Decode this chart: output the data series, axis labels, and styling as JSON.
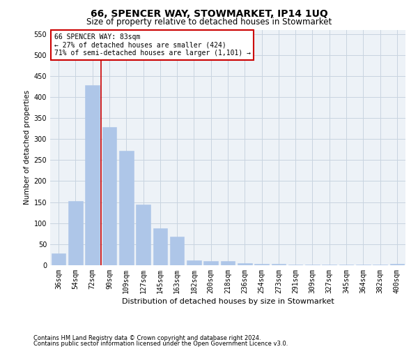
{
  "title1": "66, SPENCER WAY, STOWMARKET, IP14 1UQ",
  "title2": "Size of property relative to detached houses in Stowmarket",
  "xlabel": "Distribution of detached houses by size in Stowmarket",
  "ylabel": "Number of detached properties",
  "categories": [
    "36sqm",
    "54sqm",
    "72sqm",
    "90sqm",
    "109sqm",
    "127sqm",
    "145sqm",
    "163sqm",
    "182sqm",
    "200sqm",
    "218sqm",
    "236sqm",
    "254sqm",
    "273sqm",
    "291sqm",
    "309sqm",
    "327sqm",
    "345sqm",
    "364sqm",
    "382sqm",
    "400sqm"
  ],
  "values": [
    28,
    153,
    428,
    328,
    272,
    145,
    88,
    68,
    12,
    10,
    10,
    5,
    3,
    3,
    1,
    1,
    1,
    1,
    1,
    1,
    3
  ],
  "bar_color": "#aec6e8",
  "bar_edgecolor": "#aec6e8",
  "grid_color": "#c8d4e0",
  "vline_x": 2.5,
  "vline_color": "#cc0000",
  "annotation_text": "66 SPENCER WAY: 83sqm\n← 27% of detached houses are smaller (424)\n71% of semi-detached houses are larger (1,101) →",
  "annotation_box_facecolor": "#ffffff",
  "annotation_box_edgecolor": "#cc0000",
  "footnote1": "Contains HM Land Registry data © Crown copyright and database right 2024.",
  "footnote2": "Contains public sector information licensed under the Open Government Licence v3.0.",
  "ylim": [
    0,
    560
  ],
  "yticks": [
    0,
    50,
    100,
    150,
    200,
    250,
    300,
    350,
    400,
    450,
    500,
    550
  ],
  "background_color": "#edf2f7",
  "title1_fontsize": 10,
  "title2_fontsize": 8.5,
  "tick_fontsize": 7,
  "ylabel_fontsize": 7.5,
  "xlabel_fontsize": 8,
  "annot_fontsize": 7,
  "footnote_fontsize": 6
}
